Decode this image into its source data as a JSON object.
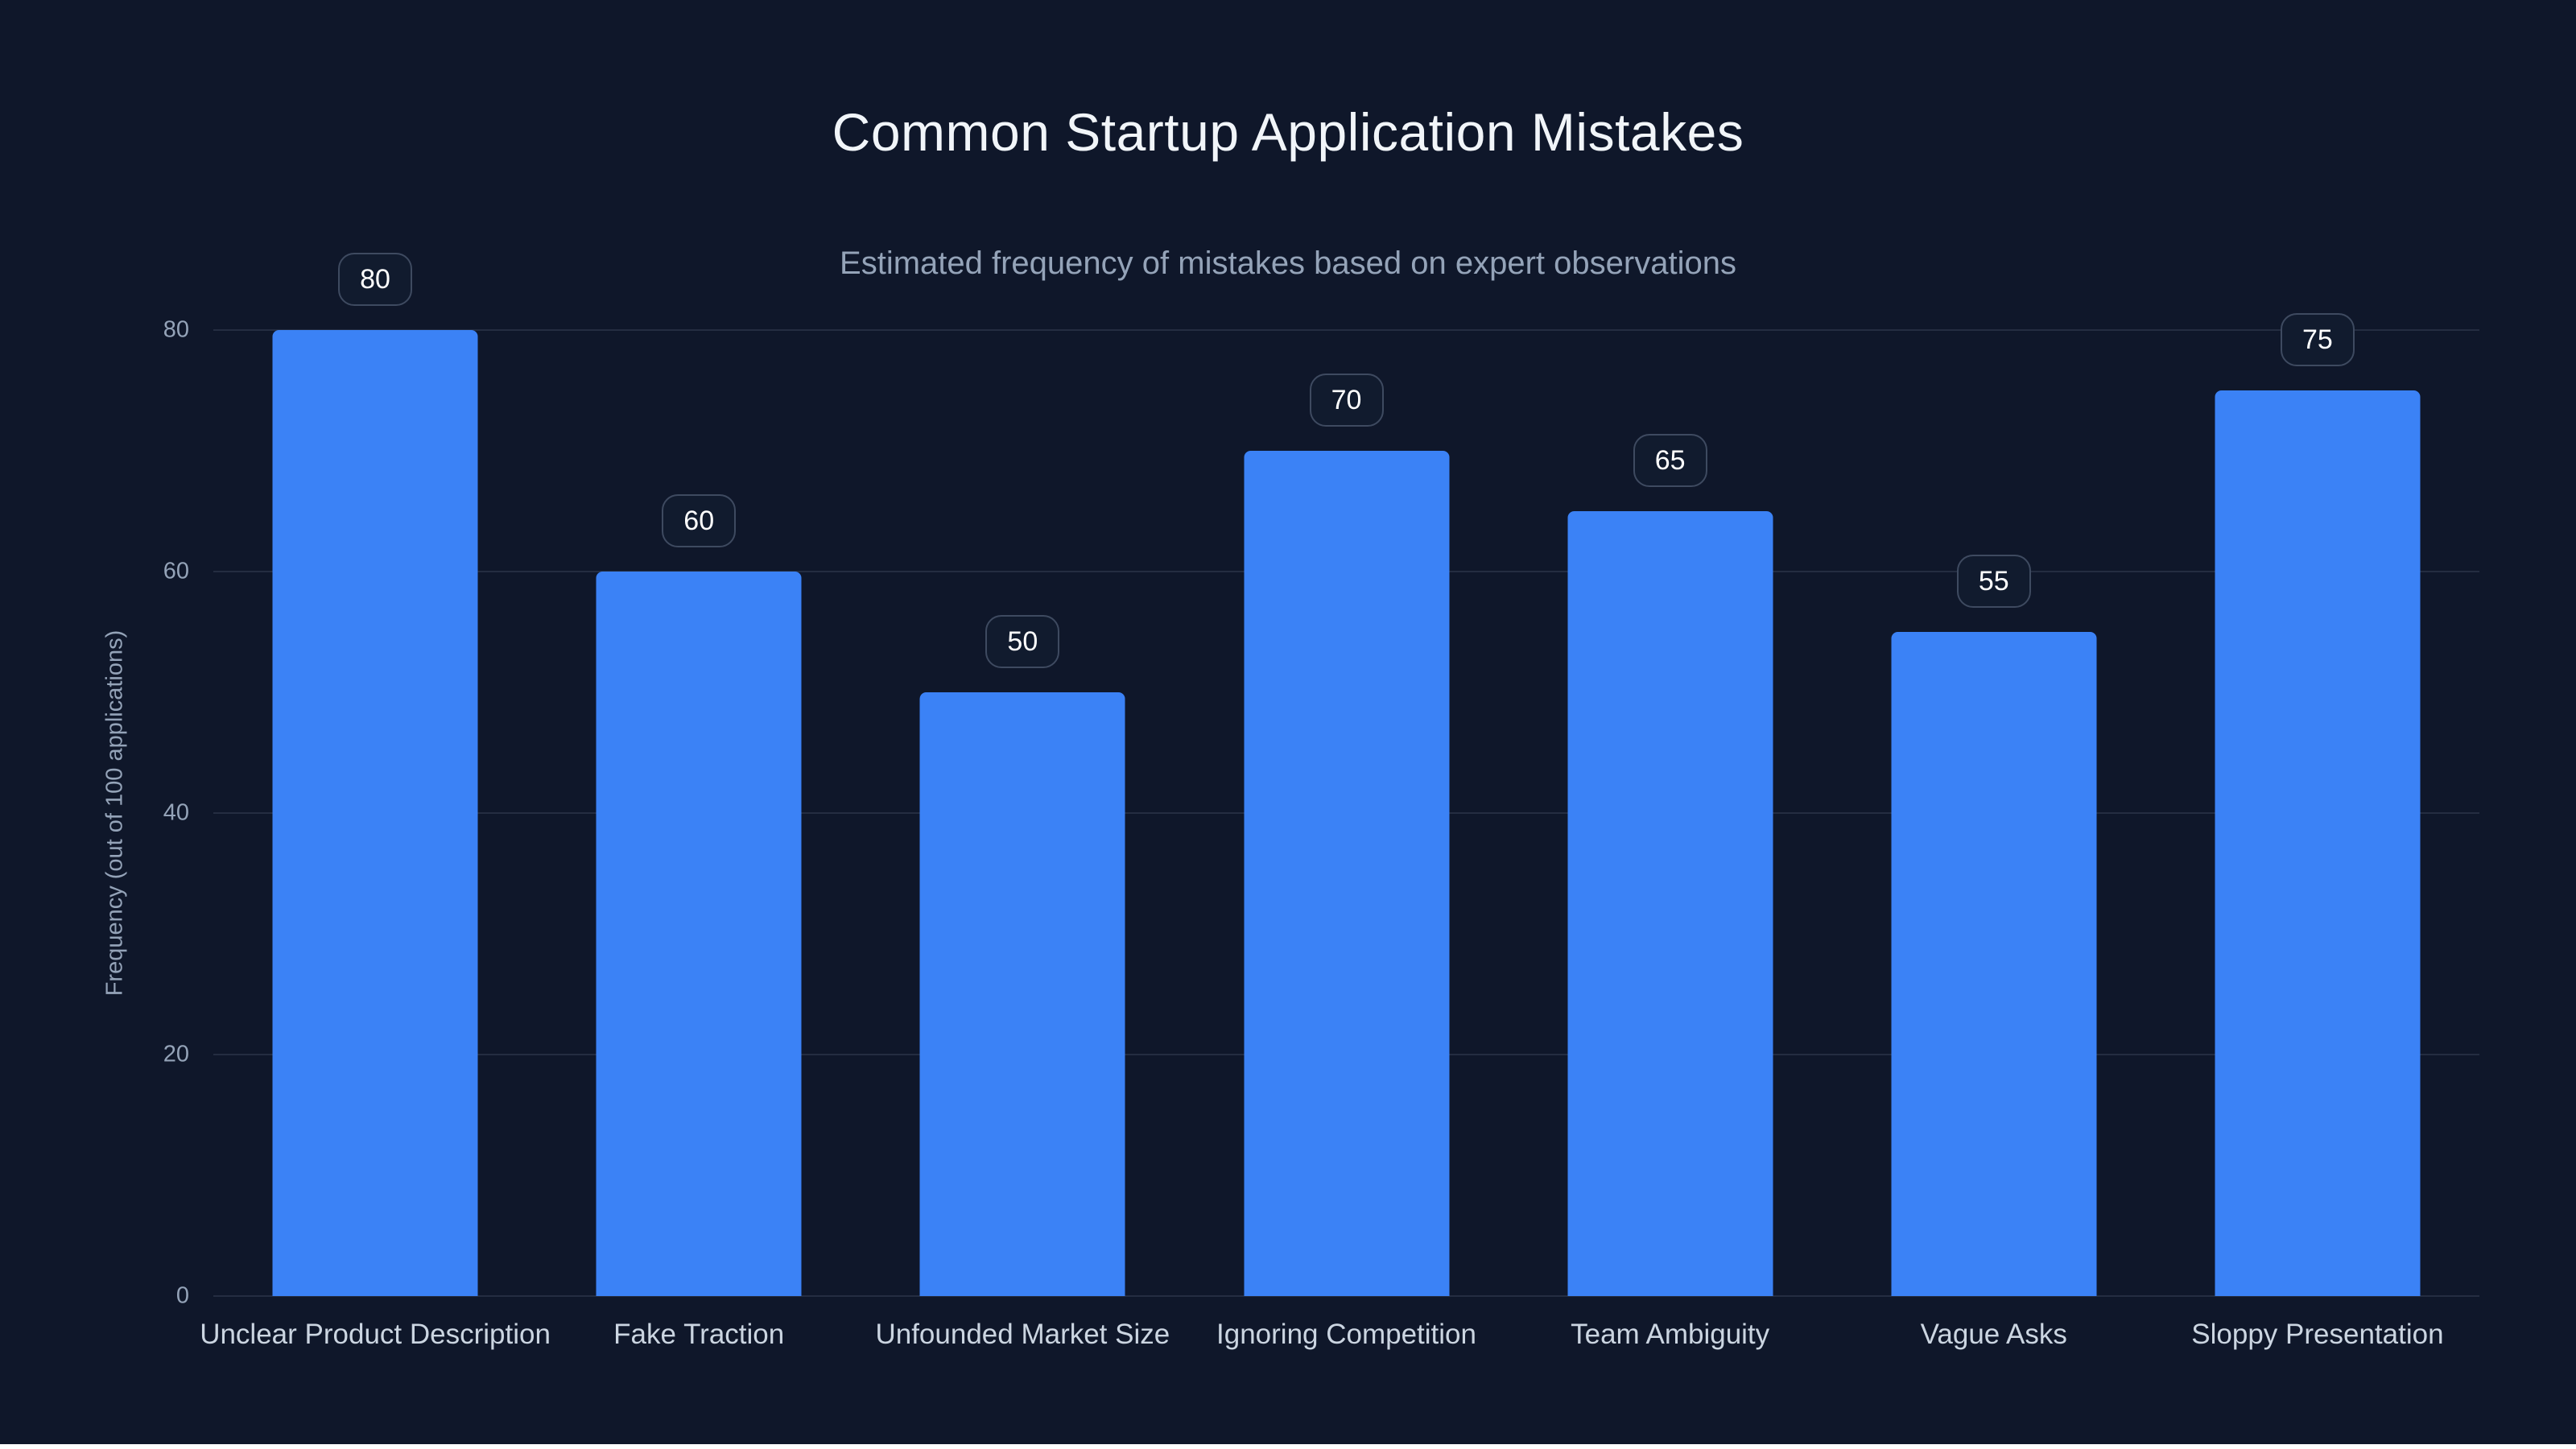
{
  "page": {
    "background": "#0f172a",
    "bottom_strip_color": "#ffffff"
  },
  "chart_data": {
    "type": "bar",
    "title": "Common Startup Application Mistakes",
    "subtitle": "Estimated frequency of mistakes based on expert observations",
    "categories": [
      "Unclear Product Description",
      "Fake Traction",
      "Unfounded Market Size",
      "Ignoring Competition",
      "Team Ambiguity",
      "Vague Asks",
      "Sloppy Presentation"
    ],
    "values": [
      80,
      60,
      50,
      70,
      65,
      55,
      75
    ],
    "value_labels": [
      "80",
      "60",
      "50",
      "70",
      "65",
      "55",
      "75"
    ],
    "xlabel": "",
    "ylabel": "Frequency (out of 100 applications)",
    "ylim": [
      0,
      80
    ],
    "yticks": [
      0,
      20,
      40,
      60,
      80
    ],
    "grid": true,
    "legend": false,
    "bar_color": "#3b82f6",
    "background_color": "#0f172a"
  }
}
